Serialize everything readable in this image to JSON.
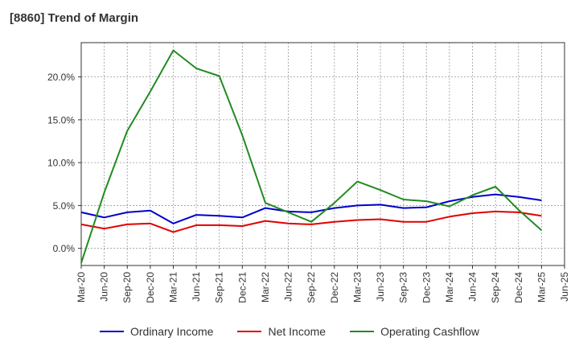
{
  "chart_data": {
    "type": "line",
    "title": "[8860]  Trend of Margin",
    "x": [
      "Mar-20",
      "Jun-20",
      "Sep-20",
      "Dec-20",
      "Mar-21",
      "Jun-21",
      "Sep-21",
      "Dec-21",
      "Mar-22",
      "Jun-22",
      "Sep-22",
      "Dec-22",
      "Mar-23",
      "Jun-23",
      "Sep-23",
      "Dec-23",
      "Mar-24",
      "Jun-24",
      "Sep-24",
      "Dec-24",
      "Mar-25",
      "Jun-25"
    ],
    "ylim": [
      -2.0,
      24.0
    ],
    "y_ticks": [
      0,
      5,
      10,
      15,
      20
    ],
    "y_tick_labels": [
      "0.0%",
      "5.0%",
      "10.0%",
      "15.0%",
      "20.0%"
    ],
    "grid": true,
    "legend_position": "bottom",
    "series": [
      {
        "name": "Ordinary Income",
        "color": "#0000cc",
        "values": [
          4.2,
          3.6,
          4.2,
          4.4,
          2.9,
          3.9,
          3.8,
          3.6,
          4.7,
          4.3,
          4.2,
          4.7,
          5.0,
          5.1,
          4.7,
          4.8,
          5.5,
          6.0,
          6.3,
          6.0,
          5.6,
          null
        ]
      },
      {
        "name": "Net Income",
        "color": "#e00000",
        "values": [
          2.8,
          2.3,
          2.8,
          2.9,
          1.9,
          2.7,
          2.7,
          2.6,
          3.2,
          2.9,
          2.8,
          3.1,
          3.3,
          3.4,
          3.1,
          3.1,
          3.7,
          4.1,
          4.3,
          4.2,
          3.8,
          null
        ]
      },
      {
        "name": "Operating Cashflow",
        "color": "#228b22",
        "values": [
          -1.7,
          6.5,
          13.7,
          18.3,
          23.1,
          21.0,
          20.1,
          13.2,
          5.3,
          4.2,
          3.1,
          5.3,
          7.8,
          6.8,
          5.7,
          5.5,
          4.9,
          6.2,
          7.2,
          4.5,
          2.1,
          null
        ]
      }
    ]
  }
}
